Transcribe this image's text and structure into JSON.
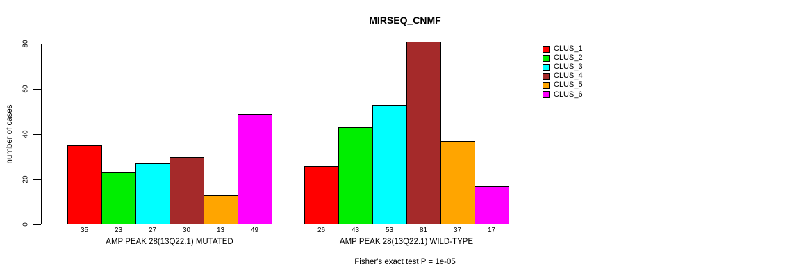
{
  "chart_data": {
    "type": "bar",
    "title": "MIRSEQ_CNMF",
    "xlabel": "",
    "ylabel": "number of cases",
    "ylim": [
      0,
      80
    ],
    "yticks": [
      0,
      20,
      40,
      60,
      80
    ],
    "grid": false,
    "legend_position": "right",
    "annotation": "Fisher's exact test P = 1e-05",
    "categories": [
      "AMP PEAK 28(13Q22.1) MUTATED",
      "AMP PEAK 28(13Q22.1) WILD-TYPE"
    ],
    "series": [
      {
        "name": "CLUS_1",
        "color": "#FF0000",
        "values": [
          35,
          26
        ]
      },
      {
        "name": "CLUS_2",
        "color": "#00EE00",
        "values": [
          23,
          43
        ]
      },
      {
        "name": "CLUS_3",
        "color": "#00FFFF",
        "values": [
          27,
          53
        ]
      },
      {
        "name": "CLUS_4",
        "color": "#A52A2A",
        "values": [
          30,
          81
        ]
      },
      {
        "name": "CLUS_5",
        "color": "#FFA500",
        "values": [
          13,
          37
        ]
      },
      {
        "name": "CLUS_6",
        "color": "#FF00FF",
        "values": [
          49,
          17
        ]
      }
    ],
    "bar_value_labels": {
      "group1": [
        35,
        23,
        27,
        30,
        13,
        49
      ],
      "group2": [
        26,
        43,
        53,
        81,
        37,
        17
      ]
    }
  }
}
